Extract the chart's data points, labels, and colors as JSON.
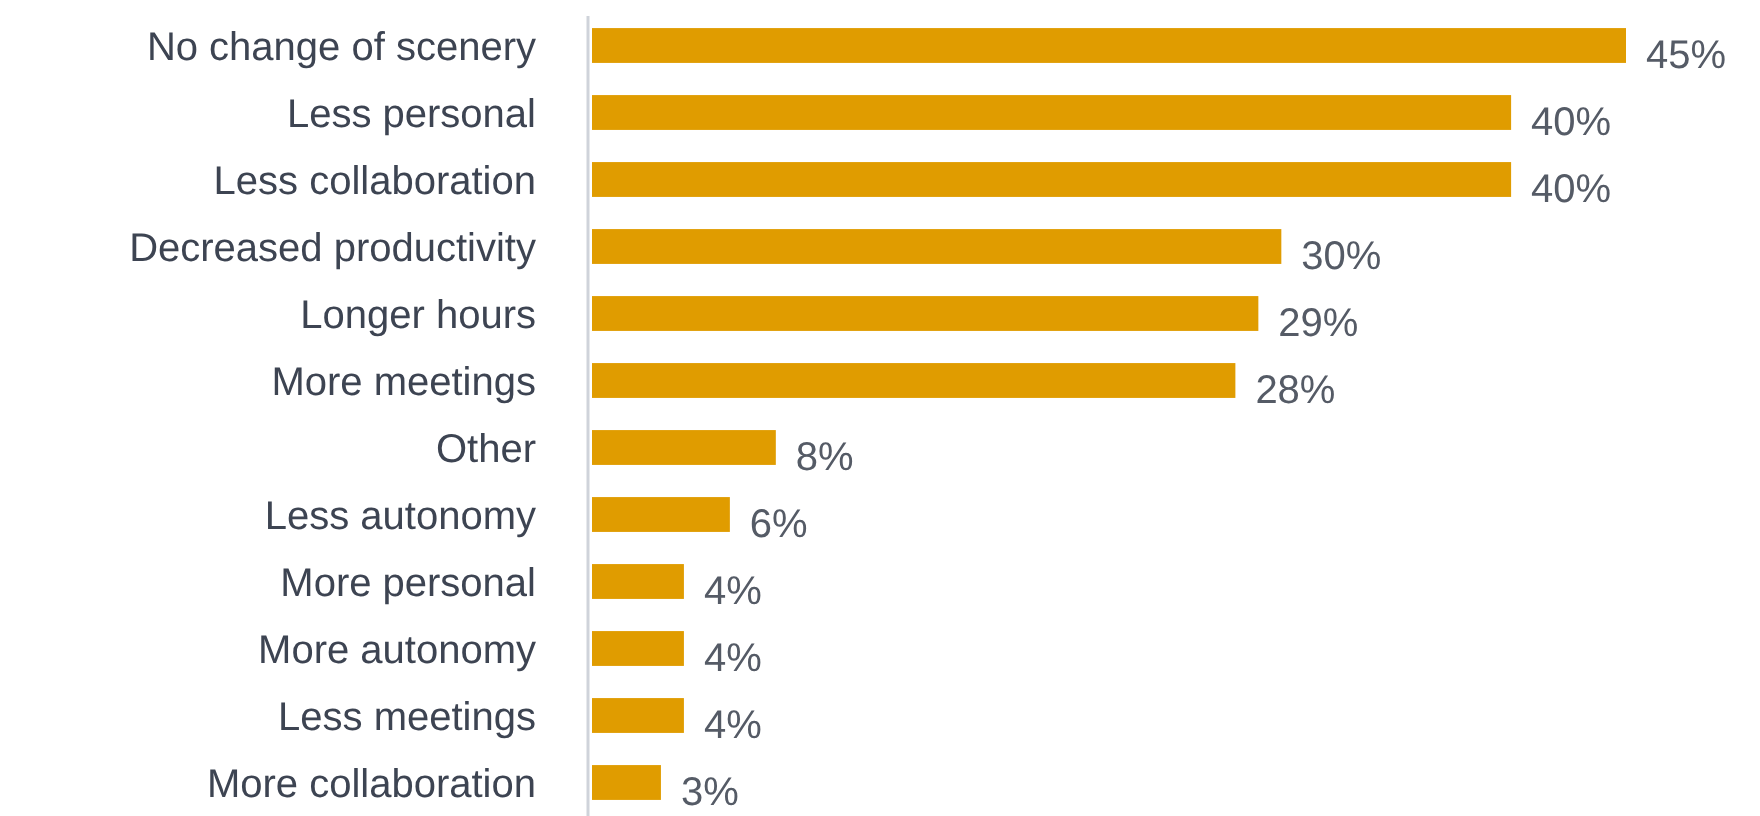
{
  "chart_data": {
    "type": "bar",
    "orientation": "horizontal",
    "categories": [
      "No change of scenery",
      "Less personal",
      "Less collaboration",
      "Decreased productivity",
      "Longer hours",
      "More meetings",
      "Other",
      "Less autonomy",
      "More personal",
      "More autonomy",
      "Less meetings",
      "More collaboration"
    ],
    "values": [
      45,
      40,
      40,
      30,
      29,
      28,
      8,
      6,
      4,
      4,
      4,
      3
    ],
    "value_labels": [
      "45%",
      "40%",
      "40%",
      "30%",
      "29%",
      "28%",
      "8%",
      "6%",
      "4%",
      "4%",
      "4%",
      "3%"
    ],
    "color": "#e09c00"
  }
}
